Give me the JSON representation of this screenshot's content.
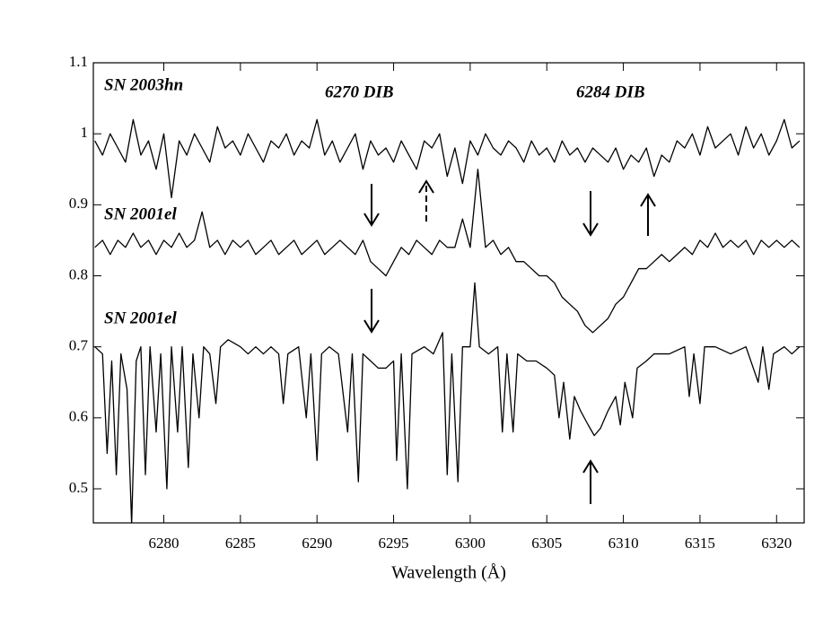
{
  "chart_data": {
    "type": "line",
    "x_label": "Wavelength (Å)",
    "xlim": [
      6275.4,
      6321.8
    ],
    "xticks": [
      6280,
      6285,
      6290,
      6295,
      6300,
      6305,
      6310,
      6315,
      6320
    ],
    "ylim": [
      0.452,
      1.1
    ],
    "yticks": [
      0.5,
      0.6,
      0.7,
      0.8,
      0.9,
      1,
      1.1
    ],
    "annotations": [
      "6270 DIB",
      "6284 DIB"
    ],
    "series": [
      {
        "name": "SN 2003hn",
        "color": "#000000",
        "x": [
          6275.5,
          6276,
          6276.5,
          6277,
          6277.5,
          6278,
          6278.5,
          6279,
          6279.5,
          6280,
          6280.5,
          6281,
          6281.5,
          6282,
          6282.5,
          6283,
          6283.5,
          6284,
          6284.5,
          6285,
          6285.5,
          6286,
          6286.5,
          6287,
          6287.5,
          6288,
          6288.5,
          6289,
          6289.5,
          6290,
          6290.5,
          6291,
          6291.5,
          6292,
          6292.5,
          6293,
          6293.5,
          6294,
          6294.5,
          6295,
          6295.5,
          6296,
          6296.5,
          6297,
          6297.5,
          6298,
          6298.5,
          6299,
          6299.5,
          6300,
          6300.5,
          6301,
          6301.5,
          6302,
          6302.5,
          6303,
          6303.5,
          6304,
          6304.5,
          6305,
          6305.5,
          6306,
          6306.5,
          6307,
          6307.5,
          6308,
          6308.5,
          6309,
          6309.5,
          6310,
          6310.5,
          6311,
          6311.5,
          6312,
          6312.5,
          6313,
          6313.5,
          6314,
          6314.5,
          6315,
          6315.5,
          6316,
          6316.5,
          6317,
          6317.5,
          6318,
          6318.5,
          6319,
          6319.5,
          6320,
          6320.5,
          6321,
          6321.5
        ],
        "values": [
          0.99,
          0.97,
          1.0,
          0.98,
          0.96,
          1.02,
          0.97,
          0.99,
          0.95,
          1.0,
          0.91,
          0.99,
          0.97,
          1.0,
          0.98,
          0.96,
          1.01,
          0.98,
          0.99,
          0.97,
          1.0,
          0.98,
          0.96,
          0.99,
          0.98,
          1.0,
          0.97,
          0.99,
          0.98,
          1.02,
          0.97,
          0.99,
          0.96,
          0.98,
          1.0,
          0.95,
          0.99,
          0.97,
          0.98,
          0.96,
          0.99,
          0.97,
          0.95,
          0.99,
          0.98,
          1.0,
          0.94,
          0.98,
          0.93,
          0.99,
          0.97,
          1.0,
          0.98,
          0.97,
          0.99,
          0.98,
          0.96,
          0.99,
          0.97,
          0.98,
          0.96,
          0.99,
          0.97,
          0.98,
          0.96,
          0.98,
          0.97,
          0.96,
          0.98,
          0.95,
          0.97,
          0.96,
          0.98,
          0.94,
          0.97,
          0.96,
          0.99,
          0.98,
          1.0,
          0.97,
          1.01,
          0.98,
          0.99,
          1.0,
          0.97,
          1.01,
          0.98,
          1.0,
          0.97,
          0.99,
          1.02,
          0.98,
          0.99
        ]
      },
      {
        "name": "SN 2001el",
        "color": "#000000",
        "x": [
          6275.5,
          6276,
          6276.5,
          6277,
          6277.5,
          6278,
          6278.5,
          6279,
          6279.5,
          6280,
          6280.5,
          6281,
          6281.5,
          6282,
          6282.5,
          6283,
          6283.5,
          6284,
          6284.5,
          6285,
          6285.5,
          6286,
          6286.5,
          6287,
          6287.5,
          6288,
          6288.5,
          6289,
          6289.5,
          6290,
          6290.5,
          6291,
          6291.5,
          6292,
          6292.5,
          6293,
          6293.5,
          6294,
          6294.5,
          6295,
          6295.5,
          6296,
          6296.5,
          6297,
          6297.5,
          6298,
          6298.5,
          6299,
          6299.5,
          6300,
          6300.5,
          6301,
          6301.5,
          6302,
          6302.5,
          6303,
          6303.5,
          6304,
          6304.5,
          6305,
          6305.5,
          6306,
          6306.5,
          6307,
          6307.5,
          6308,
          6308.5,
          6309,
          6309.5,
          6310,
          6310.5,
          6311,
          6311.5,
          6312,
          6312.5,
          6313,
          6313.5,
          6314,
          6314.5,
          6315,
          6315.5,
          6316,
          6316.5,
          6317,
          6317.5,
          6318,
          6318.5,
          6319,
          6319.5,
          6320,
          6320.5,
          6321,
          6321.5
        ],
        "values": [
          0.84,
          0.85,
          0.83,
          0.85,
          0.84,
          0.86,
          0.84,
          0.85,
          0.83,
          0.85,
          0.84,
          0.86,
          0.84,
          0.85,
          0.89,
          0.84,
          0.85,
          0.83,
          0.85,
          0.84,
          0.85,
          0.83,
          0.84,
          0.85,
          0.83,
          0.84,
          0.85,
          0.83,
          0.84,
          0.85,
          0.83,
          0.84,
          0.85,
          0.84,
          0.83,
          0.85,
          0.82,
          0.81,
          0.8,
          0.82,
          0.84,
          0.83,
          0.85,
          0.84,
          0.83,
          0.85,
          0.84,
          0.84,
          0.88,
          0.84,
          0.95,
          0.84,
          0.85,
          0.83,
          0.84,
          0.82,
          0.82,
          0.81,
          0.8,
          0.8,
          0.79,
          0.77,
          0.76,
          0.75,
          0.73,
          0.72,
          0.73,
          0.74,
          0.76,
          0.77,
          0.79,
          0.81,
          0.81,
          0.82,
          0.83,
          0.82,
          0.83,
          0.84,
          0.83,
          0.85,
          0.84,
          0.86,
          0.84,
          0.85,
          0.84,
          0.85,
          0.83,
          0.85,
          0.84,
          0.85,
          0.84,
          0.85,
          0.84
        ]
      },
      {
        "name": "SN 2001el",
        "color": "#000000",
        "x": [
          6275.5,
          6276.0,
          6276.3,
          6276.6,
          6276.9,
          6277.2,
          6277.6,
          6277.9,
          6278.2,
          6278.5,
          6278.8,
          6279.1,
          6279.5,
          6279.8,
          6280.2,
          6280.5,
          6280.9,
          6281.2,
          6281.6,
          6281.9,
          6282.3,
          6282.6,
          6283.0,
          6283.4,
          6283.7,
          6284.2,
          6285.0,
          6285.5,
          6286.0,
          6286.5,
          6287.0,
          6287.5,
          6287.8,
          6288.1,
          6288.8,
          6289.3,
          6289.6,
          6290.0,
          6290.3,
          6290.8,
          6291.4,
          6292.0,
          6292.3,
          6292.7,
          6293.0,
          6293.5,
          6294.0,
          6294.5,
          6295.0,
          6295.2,
          6295.5,
          6295.9,
          6296.2,
          6297.0,
          6297.6,
          6298.2,
          6298.5,
          6298.8,
          6299.2,
          6299.5,
          6300.0,
          6300.3,
          6300.6,
          6301.2,
          6301.8,
          6302.1,
          6302.4,
          6302.8,
          6303.1,
          6303.7,
          6304.3,
          6305.0,
          6305.5,
          6305.8,
          6306.1,
          6306.5,
          6306.8,
          6307.2,
          6307.7,
          6308.1,
          6308.5,
          6309.0,
          6309.5,
          6309.8,
          6310.1,
          6310.6,
          6310.9,
          6311.5,
          6312.0,
          6313.0,
          6314.0,
          6314.3,
          6314.6,
          6315.0,
          6315.3,
          6316.0,
          6317.0,
          6318.0,
          6318.8,
          6319.1,
          6319.5,
          6319.8,
          6320.5,
          6321.0,
          6321.5
        ],
        "values": [
          0.7,
          0.69,
          0.55,
          0.68,
          0.52,
          0.69,
          0.64,
          0.45,
          0.68,
          0.7,
          0.52,
          0.7,
          0.58,
          0.69,
          0.5,
          0.7,
          0.58,
          0.7,
          0.53,
          0.69,
          0.6,
          0.7,
          0.69,
          0.62,
          0.7,
          0.71,
          0.7,
          0.69,
          0.7,
          0.69,
          0.7,
          0.69,
          0.62,
          0.69,
          0.7,
          0.6,
          0.69,
          0.54,
          0.69,
          0.7,
          0.69,
          0.58,
          0.69,
          0.51,
          0.69,
          0.68,
          0.67,
          0.67,
          0.68,
          0.54,
          0.69,
          0.5,
          0.69,
          0.7,
          0.69,
          0.72,
          0.52,
          0.69,
          0.51,
          0.7,
          0.7,
          0.79,
          0.7,
          0.69,
          0.7,
          0.58,
          0.69,
          0.58,
          0.69,
          0.68,
          0.68,
          0.67,
          0.66,
          0.6,
          0.65,
          0.57,
          0.63,
          0.61,
          0.59,
          0.575,
          0.585,
          0.61,
          0.63,
          0.59,
          0.65,
          0.6,
          0.67,
          0.68,
          0.69,
          0.69,
          0.7,
          0.63,
          0.69,
          0.62,
          0.7,
          0.7,
          0.69,
          0.7,
          0.65,
          0.7,
          0.64,
          0.69,
          0.7,
          0.69,
          0.7
        ]
      }
    ]
  }
}
